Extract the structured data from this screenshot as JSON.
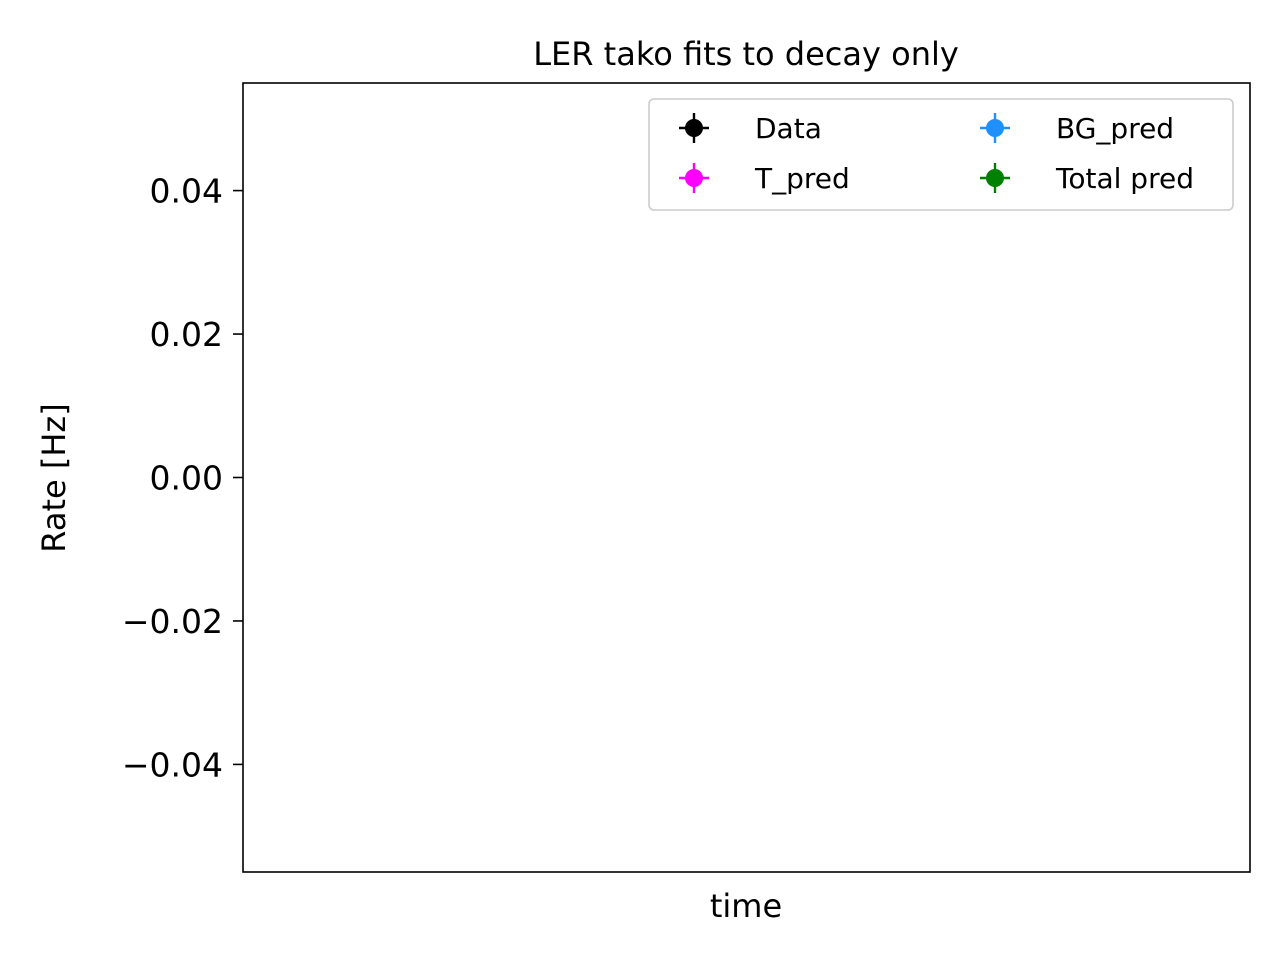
{
  "chart_data": {
    "type": "scatter",
    "title": "LER tako fits to decay only",
    "xlabel": "time",
    "ylabel": "Rate [Hz]",
    "ylim": [
      -0.055,
      0.055
    ],
    "y_ticks": [
      0.04,
      0.02,
      0.0,
      -0.02,
      -0.04
    ],
    "y_tick_labels": [
      "0.04",
      "0.02",
      "0.00",
      "−0.02",
      "−0.04"
    ],
    "x_ticks": [],
    "grid": false,
    "legend_placement": "top-right",
    "legend_columns": 2,
    "series": [
      {
        "name": "Data",
        "color": "#000000",
        "x": [],
        "y": []
      },
      {
        "name": "T_pred",
        "color": "#ff00ff",
        "x": [],
        "y": []
      },
      {
        "name": "BG_pred",
        "color": "#1e90ff",
        "x": [],
        "y": []
      },
      {
        "name": "Total pred",
        "color": "#008000",
        "x": [],
        "y": []
      }
    ]
  }
}
